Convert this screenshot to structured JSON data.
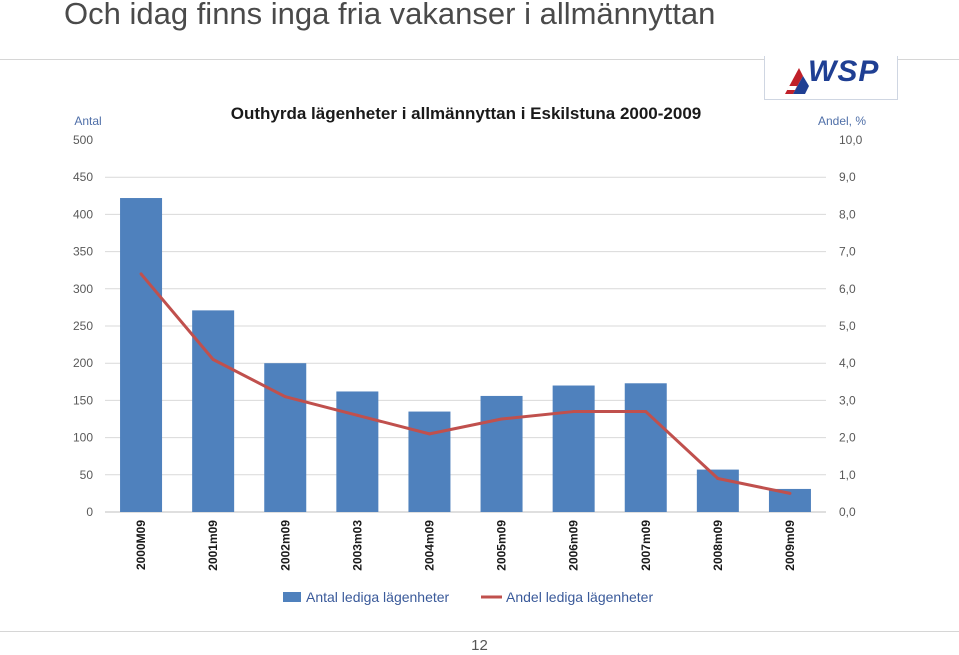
{
  "slide": {
    "title": "Och idag finns inga fria vakanser i allmännyttan",
    "page_number": "12",
    "logo_text": "WSP"
  },
  "colors": {
    "bar": "#4f81bd",
    "line": "#c0504d",
    "logo": "#1f3f93"
  },
  "chart_data": {
    "type": "bar",
    "title": "Outhyrda lägenheter i allmännyttan i Eskilstuna 2000-2009",
    "ylabel": "Antal",
    "y2label": "Andel, %",
    "ylim": [
      0,
      500
    ],
    "y2lim": [
      0,
      10
    ],
    "yticks": [
      "0",
      "50",
      "100",
      "150",
      "200",
      "250",
      "300",
      "350",
      "400",
      "450",
      "500"
    ],
    "y2ticks": [
      "0,0",
      "1,0",
      "2,0",
      "3,0",
      "4,0",
      "5,0",
      "6,0",
      "7,0",
      "8,0",
      "9,0",
      "10,0"
    ],
    "categories": [
      "2000M09",
      "2001m09",
      "2002m09",
      "2003m03",
      "2004m09",
      "2005m09",
      "2006m09",
      "2007m09",
      "2008m09",
      "2009m09"
    ],
    "series": [
      {
        "name": "Antal lediga lägenheter",
        "type": "bar",
        "axis": "left",
        "values": [
          422,
          271,
          200,
          162,
          135,
          156,
          170,
          173,
          57,
          31
        ]
      },
      {
        "name": "Andel lediga lägenheter",
        "type": "line",
        "axis": "right",
        "values": [
          6.4,
          4.1,
          3.1,
          2.6,
          2.1,
          2.5,
          2.7,
          2.7,
          0.9,
          0.5
        ]
      }
    ],
    "grid": true,
    "legend": "bottom"
  }
}
